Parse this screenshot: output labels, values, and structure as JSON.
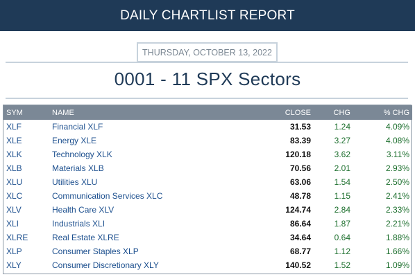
{
  "header": {
    "title": "DAILY CHARTLIST REPORT"
  },
  "report": {
    "date": "THURSDAY, OCTOBER 13, 2022",
    "title": "0001 - 11 SPX Sectors"
  },
  "table": {
    "columns": [
      "SYM",
      "NAME",
      "CLOSE",
      "CHG",
      "% CHG"
    ],
    "rows": [
      {
        "sym": "XLF",
        "name": "Financial XLF",
        "close": "31.53",
        "chg": "1.24",
        "pct": "4.09%"
      },
      {
        "sym": "XLE",
        "name": "Energy XLE",
        "close": "83.39",
        "chg": "3.27",
        "pct": "4.08%"
      },
      {
        "sym": "XLK",
        "name": "Technology XLK",
        "close": "120.18",
        "chg": "3.62",
        "pct": "3.11%"
      },
      {
        "sym": "XLB",
        "name": "Materials XLB",
        "close": "70.56",
        "chg": "2.01",
        "pct": "2.93%"
      },
      {
        "sym": "XLU",
        "name": "Utilities XLU",
        "close": "63.06",
        "chg": "1.54",
        "pct": "2.50%"
      },
      {
        "sym": "XLC",
        "name": "Communication Services XLC",
        "close": "48.78",
        "chg": "1.15",
        "pct": "2.41%"
      },
      {
        "sym": "XLV",
        "name": "Health Care XLV",
        "close": "124.74",
        "chg": "2.84",
        "pct": "2.33%"
      },
      {
        "sym": "XLI",
        "name": "Industrials XLI",
        "close": "86.64",
        "chg": "1.87",
        "pct": "2.21%"
      },
      {
        "sym": "XLRE",
        "name": "Real Estate XLRE",
        "close": "34.64",
        "chg": "0.64",
        "pct": "1.88%"
      },
      {
        "sym": "XLP",
        "name": "Consumer Staples XLP",
        "close": "68.77",
        "chg": "1.12",
        "pct": "1.66%"
      },
      {
        "sym": "XLY",
        "name": "Consumer Discretionary XLY",
        "close": "140.52",
        "chg": "1.52",
        "pct": "1.09%"
      }
    ]
  },
  "colors": {
    "header_bg": "#1f3a57",
    "table_header_bg": "#7b8896",
    "symbol_link": "#1c4f8e",
    "positive_change": "#1b6e2c"
  }
}
